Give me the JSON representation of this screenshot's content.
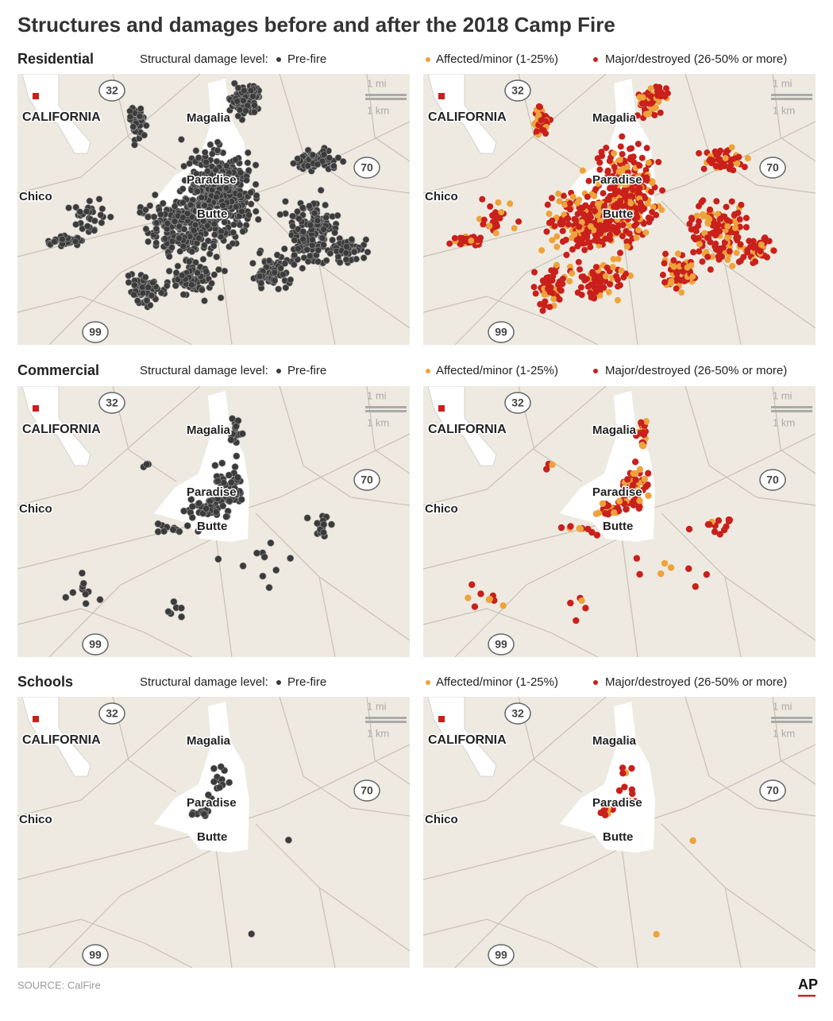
{
  "header": {
    "title": "Structures and damages before and after the 2018 Camp Fire"
  },
  "legend": {
    "label": "Structural damage level:",
    "prefire": "Pre-fire",
    "affected": "Affected/minor (1-25%)",
    "major": "Major/destroyed (26-50% or more)"
  },
  "sections": [
    "Residential",
    "Commercial",
    "Schools"
  ],
  "map_labels": {
    "state": "CALIFORNIA",
    "chico": "Chico",
    "magalia": "Magalia",
    "paradise": "Paradise",
    "butte": "Butte",
    "hwy32": "32",
    "hwy70": "70",
    "hwy99": "99",
    "scale_mi": "1 mi",
    "scale_km": "1 km"
  },
  "footer": {
    "source": "SOURCE: CalFire",
    "logo": "AP"
  }
}
